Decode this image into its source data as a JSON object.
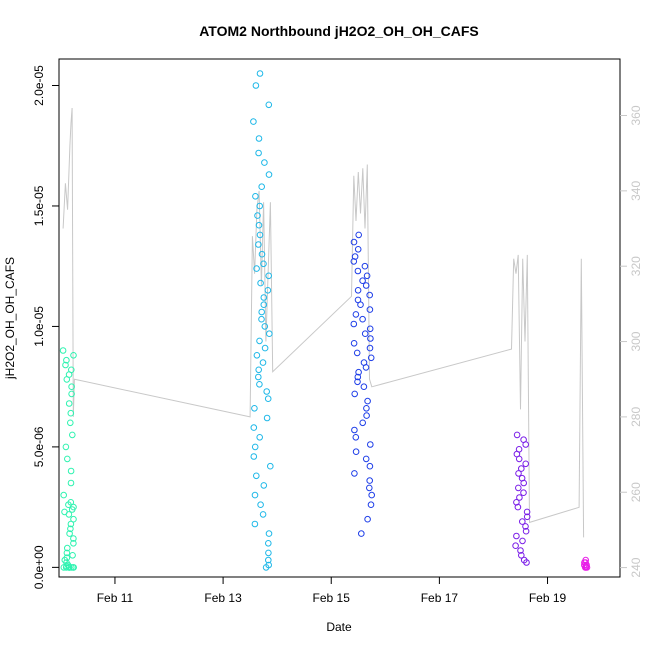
{
  "chart_data": {
    "type": "scatter",
    "title": "ATOM2 Northbound jH2O2_OH_OH_CAFS",
    "xlabel": "Date",
    "ylabel": "jH2O2_OH_OH_CAFS",
    "xlim": [
      "2017-02-09T23:10:00",
      "2017-02-20T08:10:00"
    ],
    "ylim": [
      -4e-07,
      2.11e-05
    ],
    "y2lim": [
      237.5,
      375.0
    ],
    "x_ticks": [
      {
        "date": "2017-02-11T00:00:00",
        "label": "Feb 11"
      },
      {
        "date": "2017-02-13T00:00:00",
        "label": "Feb 13"
      },
      {
        "date": "2017-02-15T00:00:00",
        "label": "Feb 15"
      },
      {
        "date": "2017-02-17T00:00:00",
        "label": "Feb 17"
      },
      {
        "date": "2017-02-19T00:00:00",
        "label": "Feb 19"
      }
    ],
    "y_ticks": [
      {
        "value": 0,
        "label": "0.0e+00"
      },
      {
        "value": 5e-06,
        "label": "5.0e-06"
      },
      {
        "value": 1e-05,
        "label": "1.0e-05"
      },
      {
        "value": 1.5e-05,
        "label": "1.5e-05"
      },
      {
        "value": 2e-05,
        "label": "2.0e-05"
      }
    ],
    "y2_ticks": [
      240,
      260,
      280,
      300,
      320,
      340,
      360
    ],
    "grid": false,
    "legend": "none",
    "colors": {
      "flight1": "#2EF3B0",
      "flight2": "#1FB8E8",
      "flight3": "#1E3EE8",
      "flight4": "#7A1DE8",
      "flight5": "#E81DE8",
      "secondary_line": "#c8c8c8"
    },
    "series": [
      {
        "color_key": "flight1",
        "x_range": [
          "2017-02-10T01:00:00",
          "2017-02-10T06:00:00"
        ],
        "y_points": [
          9e-06,
          8.8e-06,
          8.6e-06,
          8.4e-06,
          8.2e-06,
          8e-06,
          7.8e-06,
          7.5e-06,
          7.2e-06,
          6.8e-06,
          6.4e-06,
          6e-06,
          5.5e-06,
          5e-06,
          4.5e-06,
          4e-06,
          3.5e-06,
          3e-06,
          2.7e-06,
          2.6e-06,
          2.5e-06,
          2.4e-06,
          2.3e-06,
          2.2e-06,
          2e-06,
          1.8e-06,
          1.6e-06,
          1.4e-06,
          1.2e-06,
          1e-06,
          8e-07,
          6e-07,
          5e-07,
          4e-07,
          3e-07,
          2e-07,
          1e-07,
          5e-08,
          0.0,
          0.0,
          0.0,
          0.0,
          0.0,
          0.0,
          0.0,
          0.0
        ]
      },
      {
        "color_key": "flight2",
        "x_range": [
          "2017-02-13T13:00:00",
          "2017-02-13T21:00:00"
        ],
        "y_points": [
          2.05e-05,
          2e-05,
          1.92e-05,
          1.85e-05,
          1.78e-05,
          1.72e-05,
          1.68e-05,
          1.63e-05,
          1.58e-05,
          1.54e-05,
          1.5e-05,
          1.46e-05,
          1.42e-05,
          1.38e-05,
          1.34e-05,
          1.3e-05,
          1.26e-05,
          1.24e-05,
          1.21e-05,
          1.18e-05,
          1.15e-05,
          1.12e-05,
          1.09e-05,
          1.06e-05,
          1.03e-05,
          1e-05,
          9.7e-06,
          9.4e-06,
          9.1e-06,
          8.8e-06,
          8.5e-06,
          8.2e-06,
          7.9e-06,
          7.6e-06,
          7.3e-06,
          7e-06,
          6.6e-06,
          6.2e-06,
          5.8e-06,
          5.4e-06,
          5e-06,
          4.6e-06,
          4.2e-06,
          3.8e-06,
          3.4e-06,
          3e-06,
          2.6e-06,
          2.2e-06,
          1.8e-06,
          1.4e-06,
          1e-06,
          6e-07,
          3e-07,
          1e-07,
          0.0
        ]
      },
      {
        "color_key": "flight3",
        "x_range": [
          "2017-02-15T10:00:00",
          "2017-02-15T18:00:00"
        ],
        "y_points": [
          1.38e-05,
          1.35e-05,
          1.32e-05,
          1.29e-05,
          1.27e-05,
          1.25e-05,
          1.23e-05,
          1.21e-05,
          1.19e-05,
          1.17e-05,
          1.15e-05,
          1.13e-05,
          1.11e-05,
          1.09e-05,
          1.07e-05,
          1.05e-05,
          1.03e-05,
          1.01e-05,
          9.9e-06,
          9.7e-06,
          9.5e-06,
          9.3e-06,
          9.1e-06,
          8.9e-06,
          8.7e-06,
          8.5e-06,
          8.3e-06,
          8.1e-06,
          7.9e-06,
          7.7e-06,
          7.5e-06,
          7.2e-06,
          6.9e-06,
          6.6e-06,
          6.3e-06,
          6e-06,
          5.7e-06,
          5.4e-06,
          5.1e-06,
          4.8e-06,
          4.5e-06,
          4.2e-06,
          3.9e-06,
          3.6e-06,
          3.3e-06,
          3e-06,
          2.6e-06,
          2e-06,
          1.4e-06
        ]
      },
      {
        "color_key": "flight4",
        "x_range": [
          "2017-02-18T09:00:00",
          "2017-02-18T15:00:00"
        ],
        "y_points": [
          5.5e-06,
          5.3e-06,
          5.1e-06,
          4.9e-06,
          4.7e-06,
          4.5e-06,
          4.3e-06,
          4.1e-06,
          3.9e-06,
          3.7e-06,
          3.5e-06,
          3.3e-06,
          3.1e-06,
          2.9e-06,
          2.7e-06,
          2.5e-06,
          2.3e-06,
          2.1e-06,
          1.9e-06,
          1.7e-06,
          1.5e-06,
          1.3e-06,
          1.1e-06,
          9e-07,
          7e-07,
          5e-07,
          3e-07,
          2e-07
        ]
      },
      {
        "color_key": "flight5",
        "x_range": [
          "2017-02-19T16:00:00",
          "2017-02-19T18:00:00"
        ],
        "y_points": [
          3e-07,
          2e-07,
          2e-07,
          1e-07,
          1e-07,
          5e-08,
          5e-08,
          0.0,
          0.0,
          0.0
        ]
      }
    ],
    "secondary_series": {
      "color_key": "secondary_line",
      "axis": "right",
      "values": [
        [
          "2017-02-10T01:00:00",
          330
        ],
        [
          "2017-02-10T02:00:00",
          342
        ],
        [
          "2017-02-10T03:00:00",
          335
        ],
        [
          "2017-02-10T04:00:00",
          352
        ],
        [
          "2017-02-10T04:30:00",
          358
        ],
        [
          "2017-02-10T05:00:00",
          362
        ],
        [
          "2017-02-10T05:30:00",
          280
        ],
        [
          "2017-02-10T06:00:00",
          290
        ],
        [
          "2017-02-13T12:00:00",
          280
        ],
        [
          "2017-02-13T13:00:00",
          328
        ],
        [
          "2017-02-13T14:00:00",
          318
        ],
        [
          "2017-02-13T15:00:00",
          335
        ],
        [
          "2017-02-13T16:00:00",
          340
        ],
        [
          "2017-02-13T17:00:00",
          315
        ],
        [
          "2017-02-13T18:00:00",
          337
        ],
        [
          "2017-02-13T19:00:00",
          300
        ],
        [
          "2017-02-13T21:00:00",
          337
        ],
        [
          "2017-02-13T22:00:00",
          292
        ],
        [
          "2017-02-15T09:00:00",
          312
        ],
        [
          "2017-02-15T10:00:00",
          344
        ],
        [
          "2017-02-15T11:00:00",
          332
        ],
        [
          "2017-02-15T12:00:00",
          345
        ],
        [
          "2017-02-15T13:00:00",
          334
        ],
        [
          "2017-02-15T14:00:00",
          346
        ],
        [
          "2017-02-15T15:00:00",
          330
        ],
        [
          "2017-02-15T16:00:00",
          347
        ],
        [
          "2017-02-15T17:00:00",
          290
        ],
        [
          "2017-02-15T18:00:00",
          288
        ],
        [
          "2017-02-18T08:00:00",
          298
        ],
        [
          "2017-02-18T09:00:00",
          322
        ],
        [
          "2017-02-18T10:00:00",
          318
        ],
        [
          "2017-02-18T11:00:00",
          323
        ],
        [
          "2017-02-18T12:00:00",
          282
        ],
        [
          "2017-02-18T13:00:00",
          322
        ],
        [
          "2017-02-18T14:00:00",
          300
        ],
        [
          "2017-02-18T15:00:00",
          323
        ],
        [
          "2017-02-18T16:00:00",
          252
        ],
        [
          "2017-02-19T14:00:00",
          256
        ],
        [
          "2017-02-19T15:00:00",
          322
        ],
        [
          "2017-02-19T16:00:00",
          248
        ]
      ]
    }
  }
}
